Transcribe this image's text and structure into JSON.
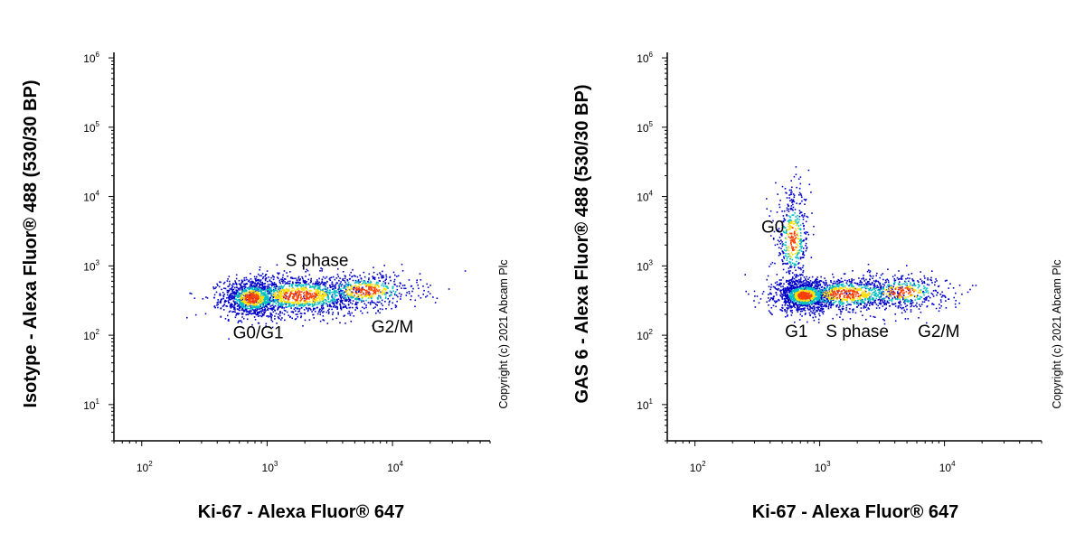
{
  "chart_data": [
    {
      "type": "scatter",
      "xlabel": "Ki-67 - Alexa Fluor® 647",
      "ylabel": "Isotype - Alexa Fluor® 488 (530/30 BP)",
      "x_scale": "log",
      "y_scale": "log",
      "xlim": [
        60,
        60000
      ],
      "ylim": [
        3,
        1200000
      ],
      "x_ticks": [
        {
          "base": "10",
          "exp": "2"
        },
        {
          "base": "10",
          "exp": "3"
        },
        {
          "base": "10",
          "exp": "4"
        }
      ],
      "y_ticks": [
        {
          "base": "10",
          "exp": "1"
        },
        {
          "base": "10",
          "exp": "2"
        },
        {
          "base": "10",
          "exp": "3"
        },
        {
          "base": "10",
          "exp": "4"
        },
        {
          "base": "10",
          "exp": "5"
        },
        {
          "base": "10",
          "exp": "6"
        }
      ],
      "grid": false,
      "copyright": "Copyright (c) 2021 Abcam Plc",
      "annotations": [
        {
          "text": "S phase",
          "x": 2500,
          "y": 1000
        },
        {
          "text": "G0/G1",
          "x": 850,
          "y": 90
        },
        {
          "text": "G2/M",
          "x": 10000,
          "y": 110
        }
      ],
      "populations": [
        {
          "name": "G0/G1",
          "x_center": 750,
          "y_center": 350,
          "x_spread_log": 0.12,
          "y_spread_log": 0.14,
          "weight": 900
        },
        {
          "name": "S phase",
          "x_center": 1800,
          "y_center": 380,
          "x_spread_log": 0.28,
          "y_spread_log": 0.15,
          "weight": 1300
        },
        {
          "name": "G2/M",
          "x_center": 6000,
          "y_center": 450,
          "x_spread_log": 0.22,
          "y_spread_log": 0.13,
          "weight": 500
        }
      ]
    },
    {
      "type": "scatter",
      "xlabel": "Ki-67 - Alexa Fluor® 647",
      "ylabel": "GAS 6 - Alexa Fluor® 488 (530/30 BP)",
      "x_scale": "log",
      "y_scale": "log",
      "xlim": [
        60,
        60000
      ],
      "ylim": [
        3,
        1200000
      ],
      "x_ticks": [
        {
          "base": "10",
          "exp": "2"
        },
        {
          "base": "10",
          "exp": "3"
        },
        {
          "base": "10",
          "exp": "4"
        }
      ],
      "y_ticks": [
        {
          "base": "10",
          "exp": "1"
        },
        {
          "base": "10",
          "exp": "2"
        },
        {
          "base": "10",
          "exp": "3"
        },
        {
          "base": "10",
          "exp": "4"
        },
        {
          "base": "10",
          "exp": "5"
        },
        {
          "base": "10",
          "exp": "6"
        }
      ],
      "grid": false,
      "copyright": "Copyright (c) 2021 Abcam Plc",
      "annotations": [
        {
          "text": "G0",
          "x": 420,
          "y": 3000
        },
        {
          "text": "G1",
          "x": 650,
          "y": 95
        },
        {
          "text": "S phase",
          "x": 2000,
          "y": 95
        },
        {
          "text": "G2/M",
          "x": 9000,
          "y": 95
        }
      ],
      "populations": [
        {
          "name": "G0",
          "x_center": 600,
          "y_center": 2500,
          "x_spread_log": 0.07,
          "y_spread_log": 0.35,
          "weight": 450
        },
        {
          "name": "G1",
          "x_center": 750,
          "y_center": 380,
          "x_spread_log": 0.11,
          "y_spread_log": 0.11,
          "weight": 1100
        },
        {
          "name": "S phase",
          "x_center": 1600,
          "y_center": 400,
          "x_spread_log": 0.25,
          "y_spread_log": 0.13,
          "weight": 900
        },
        {
          "name": "G2/M",
          "x_center": 4500,
          "y_center": 430,
          "x_spread_log": 0.2,
          "y_spread_log": 0.13,
          "weight": 400
        }
      ]
    }
  ],
  "colors": {
    "density_low": "#0000c8",
    "density_mid": "#00c0c0",
    "density_high": "#ffe000",
    "density_peak": "#ff4000",
    "axis": "#000000"
  }
}
